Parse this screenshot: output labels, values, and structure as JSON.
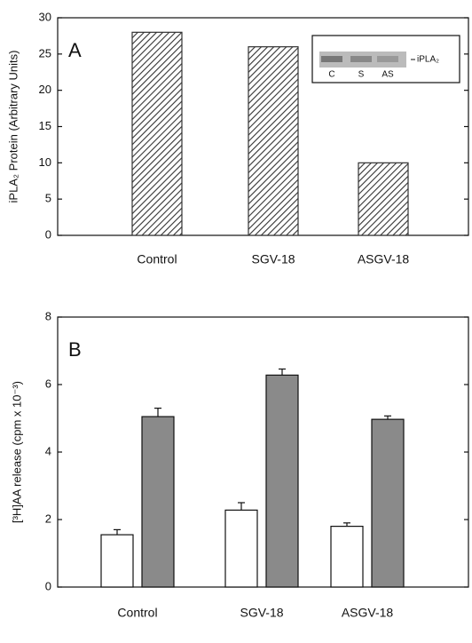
{
  "chart_data": [
    {
      "type": "bar",
      "panel_label": "A",
      "y_label": "iPLA₂ Protein (Arbitrary Units)",
      "categories": [
        "Control",
        "SGV-18",
        "ASGV-18"
      ],
      "values": [
        28,
        26,
        10
      ],
      "color": "#333333",
      "hatch": true,
      "ylim": [
        0,
        30
      ],
      "yticks": [
        0,
        5,
        10,
        15,
        20,
        25,
        30
      ],
      "inset": {
        "lanes": [
          "C",
          "S",
          "AS"
        ],
        "band_label": "iPLA₂"
      }
    },
    {
      "type": "bar",
      "panel_label": "B",
      "y_label": "[³H]AA release (cpm x 10⁻³)",
      "categories": [
        "Control",
        "SGV-18",
        "ASGV-18"
      ],
      "series": [
        {
          "color": "#ffffff",
          "values": [
            1.55,
            2.28,
            1.8
          ],
          "errors": [
            0.15,
            0.22,
            0.1
          ]
        },
        {
          "color": "#8a8a8a",
          "values": [
            5.05,
            6.28,
            4.97
          ],
          "errors": [
            0.25,
            0.18,
            0.1
          ]
        }
      ],
      "ylim": [
        0,
        8
      ],
      "yticks": [
        0,
        2,
        4,
        6,
        8
      ]
    }
  ]
}
